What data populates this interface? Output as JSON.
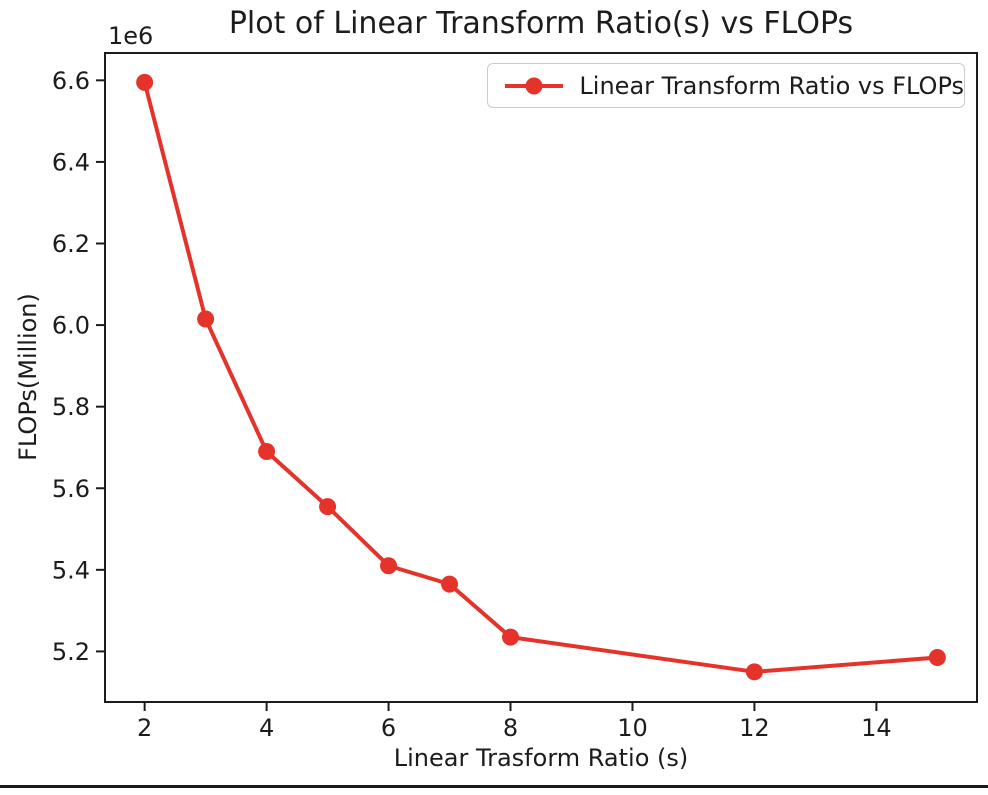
{
  "chart_data": {
    "type": "line",
    "title": "Plot of Linear Transform Ratio(s) vs FLOPs",
    "xlabel": "Linear Trasform Ratio (s)",
    "ylabel": "FLOPs(Million)",
    "y_offset_text": "1e6",
    "legend": {
      "label": "Linear Transform Ratio vs FLOPs",
      "position": "upper right"
    },
    "series": [
      {
        "name": "Linear Transform Ratio vs FLOPs",
        "color": "#e4332b",
        "marker": "circle",
        "x": [
          2,
          3,
          4,
          5,
          6,
          7,
          8,
          12,
          15
        ],
        "y_millions": [
          6.595,
          6.015,
          5.69,
          5.555,
          5.41,
          5.365,
          5.235,
          5.15,
          5.185
        ]
      }
    ],
    "x_ticks": [
      2,
      4,
      6,
      8,
      10,
      12,
      14
    ],
    "y_ticks": [
      5.2,
      5.4,
      5.6,
      5.8,
      6.0,
      6.2,
      6.4,
      6.6
    ],
    "xlim": [
      1.35,
      15.65
    ],
    "ylim_millions": [
      5.076,
      6.667
    ],
    "grid": false,
    "axis_color": "#1c1c1c"
  }
}
